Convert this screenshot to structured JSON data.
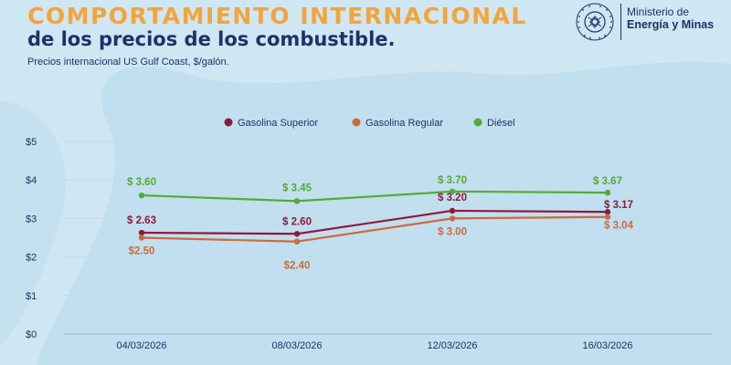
{
  "header": {
    "title_main": "COMPORTAMIENTO INTERNACIONAL",
    "title_sub": "de los precios de los combustible.",
    "subtitle": "Precios internacional US Gulf Coast, $/galón."
  },
  "logo": {
    "seal_text": "REPUBLICA DE GUATEMALA",
    "ministry_line1": "Ministerio de",
    "ministry_line2": "Energía y Minas"
  },
  "colors": {
    "title_accent": "#f2a53a",
    "navy": "#1f3166",
    "superior": "#8c1a3e",
    "regular": "#cc6b3d",
    "diesel": "#54ab35"
  },
  "chart_data": {
    "type": "line",
    "title": "",
    "xlabel": "",
    "ylabel": "",
    "categories": [
      "04/03/2026",
      "08/03/2026",
      "12/03/2026",
      "16/03/2026"
    ],
    "y_ticks": [
      "$0",
      "$1",
      "$2",
      "$3",
      "$4",
      "$5"
    ],
    "ylim": [
      0,
      5
    ],
    "grid": true,
    "legend_position": "top-center",
    "series": [
      {
        "name": "Gasolina Superior",
        "color": "#8c1a3e",
        "values": [
          2.63,
          2.6,
          3.2,
          3.17
        ],
        "labels": [
          "$ 2.63",
          "$ 2.60",
          "$ 3.20",
          "$ 3.17"
        ]
      },
      {
        "name": "Gasolina Regular",
        "color": "#cc6b3d",
        "values": [
          2.5,
          2.4,
          3.0,
          3.04
        ],
        "labels": [
          "$2.50",
          "$2.40",
          "$ 3.00",
          "$ 3.04"
        ]
      },
      {
        "name": "Diésel",
        "color": "#54ab35",
        "values": [
          3.6,
          3.45,
          3.7,
          3.67
        ],
        "labels": [
          "$ 3.60",
          "$ 3.45",
          "$ 3.70",
          "$ 3.67"
        ]
      }
    ]
  }
}
